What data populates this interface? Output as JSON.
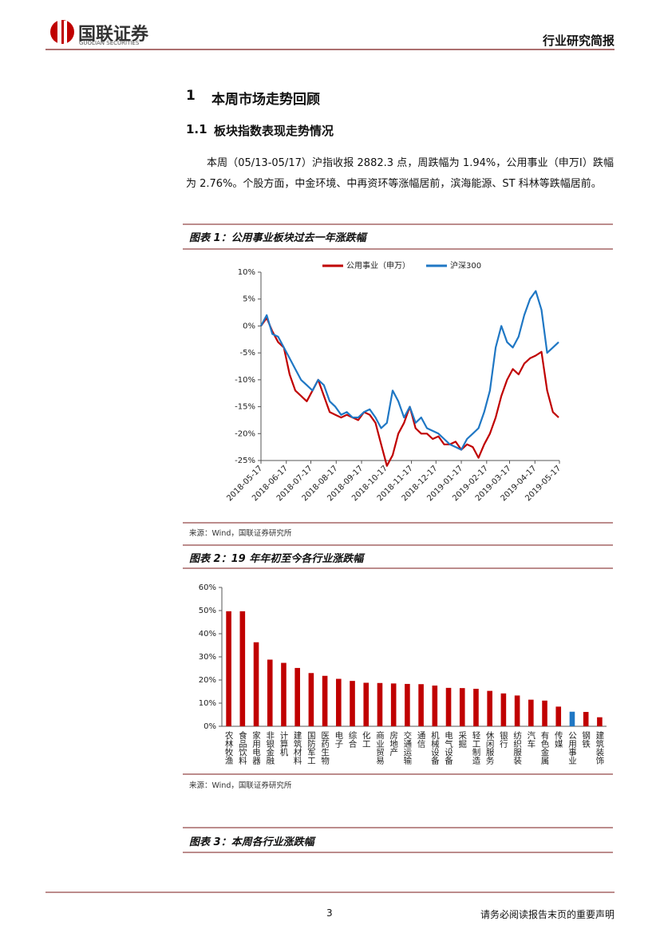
{
  "header": {
    "logo_cn": "国联证券",
    "logo_en": "GUOLIAN SECURITIES",
    "report_type": "行业研究简报"
  },
  "section": {
    "number": "1",
    "title": "本周市场走势回顾"
  },
  "subsection": {
    "number": "1.1",
    "title": "板块指数表现走势情况"
  },
  "paragraph": "本周（05/13-05/17）沪指收报 2882.3 点，周跌幅为 1.94%，公用事业（申万Ⅰ）跌幅为 2.76%。个股方面，中金环境、中再资环等涨幅居前，滨海能源、ST 科林等跌幅居前。",
  "figures": [
    {
      "caption": "图表 1：公用事业板块过去一年涨跌幅",
      "source": "来源：Wind，国联证券研究所"
    },
    {
      "caption": "图表 2：19 年年初至今各行业涨跌幅",
      "source": "来源：Wind，国联证券研究所"
    },
    {
      "caption": "图表 3：本周各行业涨跌幅"
    }
  ],
  "chart_data": [
    {
      "type": "line",
      "legend": "top",
      "grid": false,
      "x": [
        "2018-05-17",
        "2018-05-24",
        "2018-05-31",
        "2018-06-07",
        "2018-06-14",
        "2018-06-21",
        "2018-06-28",
        "2018-07-05",
        "2018-07-12",
        "2018-07-19",
        "2018-07-26",
        "2018-08-02",
        "2018-08-09",
        "2018-08-16",
        "2018-08-23",
        "2018-08-30",
        "2018-09-06",
        "2018-09-13",
        "2018-09-20",
        "2018-09-27",
        "2018-10-04",
        "2018-10-11",
        "2018-10-18",
        "2018-10-25",
        "2018-11-01",
        "2018-11-08",
        "2018-11-15",
        "2018-11-22",
        "2018-11-29",
        "2018-12-06",
        "2018-12-13",
        "2018-12-20",
        "2018-12-27",
        "2019-01-03",
        "2019-01-10",
        "2019-01-17",
        "2019-01-24",
        "2019-01-31",
        "2019-02-07",
        "2019-02-14",
        "2019-02-21",
        "2019-02-28",
        "2019-03-07",
        "2019-03-14",
        "2019-03-21",
        "2019-03-28",
        "2019-04-04",
        "2019-04-11",
        "2019-04-18",
        "2019-04-25",
        "2019-05-02",
        "2019-05-09",
        "2019-05-16"
      ],
      "series": [
        {
          "name": "公用事业（申万）",
          "color": "#c00000",
          "values": [
            0,
            1.5,
            -1,
            -3,
            -4,
            -9,
            -12,
            -13,
            -14,
            -12,
            -10,
            -13,
            -16,
            -16.5,
            -17,
            -16.5,
            -17,
            -17.5,
            -16,
            -16.5,
            -18,
            -22,
            -26,
            -24,
            -20,
            -18,
            -15,
            -19,
            -20,
            -20,
            -21,
            -20.5,
            -22,
            -22,
            -21.5,
            -23,
            -22,
            -22.5,
            -24.5,
            -22,
            -20,
            -17,
            -13,
            -10,
            -8,
            -9,
            -7,
            -6,
            -5.5,
            -4.8,
            -12,
            -16,
            -17
          ]
        },
        {
          "name": "沪深300",
          "color": "#1f77c4",
          "values": [
            0,
            2,
            -1.5,
            -2,
            -4,
            -6,
            -8,
            -10,
            -11,
            -12,
            -10,
            -11,
            -14,
            -15,
            -16.5,
            -16,
            -17,
            -17,
            -16,
            -15.5,
            -17,
            -19,
            -18,
            -12,
            -14,
            -17,
            -15,
            -18,
            -17,
            -19,
            -19.5,
            -20,
            -21,
            -22,
            -22.5,
            -23,
            -21,
            -20,
            -19,
            -16,
            -12,
            -4,
            0,
            -3,
            -4,
            -2,
            2,
            5,
            6.5,
            3,
            -5,
            -4,
            -3
          ]
        }
      ],
      "xlim": [
        "2018-05-17",
        "2019-05-17"
      ],
      "xticks": [
        "2018-05-17",
        "2018-06-17",
        "2018-07-17",
        "2018-08-17",
        "2018-09-17",
        "2018-10-17",
        "2018-11-17",
        "2018-12-17",
        "2019-01-17",
        "2019-02-17",
        "2019-03-17",
        "2019-04-17",
        "2019-05-17"
      ],
      "ylim": [
        -25,
        10
      ],
      "yticks": [
        {
          "value": -25,
          "label": "-25%"
        },
        {
          "value": -20,
          "label": "-20%"
        },
        {
          "value": -15,
          "label": "-15%"
        },
        {
          "value": -10,
          "label": "-10%"
        },
        {
          "value": -5,
          "label": "-5%"
        },
        {
          "value": 0,
          "label": "0%"
        },
        {
          "value": 5,
          "label": "5%"
        },
        {
          "value": 10,
          "label": "10%"
        }
      ]
    },
    {
      "type": "bar",
      "grid": false,
      "categories": [
        "农林牧渔",
        "食品饮料",
        "家用电器",
        "非银金融",
        "计算机",
        "建筑材料",
        "国防军工",
        "医药生物",
        "电子",
        "综合",
        "化工",
        "商业贸易",
        "房地产",
        "交通运输",
        "通信",
        "机械设备",
        "电气设备",
        "采掘",
        "轻工制造",
        "休闲服务",
        "银行",
        "纺织服装",
        "汽车",
        "有色金属",
        "传媒",
        "公用事业",
        "钢铁",
        "建筑装饰"
      ],
      "values": [
        49.7,
        49.7,
        36.3,
        28.8,
        27.4,
        25.2,
        23.0,
        21.8,
        20.5,
        19.6,
        18.8,
        18.7,
        18.5,
        18.3,
        18.2,
        17.6,
        16.6,
        16.5,
        16.2,
        15.3,
        14.2,
        13.3,
        11.5,
        11.1,
        8.5,
        6.3,
        6.2,
        3.9
      ],
      "colors": [
        "#c00000",
        "#c00000",
        "#c00000",
        "#c00000",
        "#c00000",
        "#c00000",
        "#c00000",
        "#c00000",
        "#c00000",
        "#c00000",
        "#c00000",
        "#c00000",
        "#c00000",
        "#c00000",
        "#c00000",
        "#c00000",
        "#c00000",
        "#c00000",
        "#c00000",
        "#c00000",
        "#c00000",
        "#c00000",
        "#c00000",
        "#c00000",
        "#c00000",
        "#1f77c4",
        "#c00000",
        "#c00000"
      ],
      "ylim": [
        0,
        60
      ],
      "yticks": [
        {
          "value": 0,
          "label": "0%"
        },
        {
          "value": 10,
          "label": "10%"
        },
        {
          "value": 20,
          "label": "20%"
        },
        {
          "value": 30,
          "label": "30%"
        },
        {
          "value": 40,
          "label": "40%"
        },
        {
          "value": 50,
          "label": "50%"
        },
        {
          "value": 60,
          "label": "60%"
        }
      ]
    }
  ],
  "footer": {
    "page": "3",
    "notice": "请务必阅读报告末页的重要声明"
  }
}
